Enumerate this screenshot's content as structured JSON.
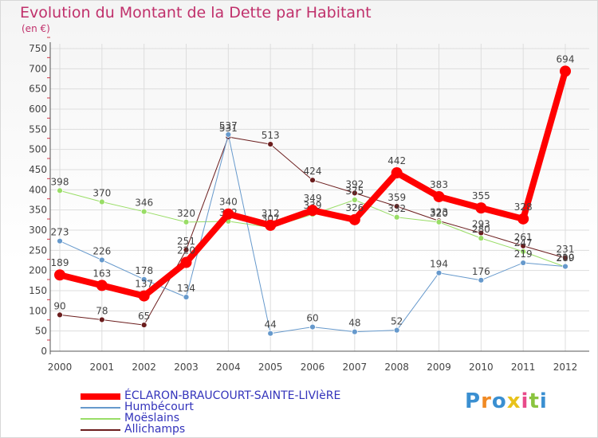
{
  "logo": "Proxiti",
  "colors": {
    "title": "#c0306b",
    "grid": "#dddddd",
    "axis": "#555555",
    "label": "#444444",
    "legend_text": "#3333bb"
  },
  "chart_data": {
    "type": "line",
    "title": "Evolution du Montant de la Dette par Habitant",
    "unit_label": "(en €)",
    "x": [
      "2000",
      "2001",
      "2002",
      "2003",
      "2004",
      "2005",
      "2006",
      "2007",
      "2008",
      "2009",
      "2010",
      "2011",
      "2012"
    ],
    "ylim": [
      0,
      750
    ],
    "yticks": [
      0,
      50,
      100,
      150,
      200,
      250,
      300,
      350,
      400,
      450,
      500,
      550,
      600,
      650,
      700,
      750
    ],
    "grid": true,
    "legend_position": "bottom-left",
    "series": [
      {
        "name": "Allichamps",
        "color": "#6b1d1d",
        "width": 1,
        "marker_radius": 3.5,
        "values": [
          90,
          78,
          65,
          251,
          531,
          513,
          424,
          392,
          359,
          323,
          293,
          261,
          231
        ]
      },
      {
        "name": "Moëslains",
        "color": "#99dd66",
        "width": 1,
        "marker_radius": 3.5,
        "values": [
          398,
          370,
          346,
          320,
          322,
          307,
          339,
          375,
          332,
          320,
          280,
          247,
          209
        ]
      },
      {
        "name": "Humbécourt",
        "color": "#6699cc",
        "width": 1,
        "marker_radius": 3.5,
        "values": [
          273,
          226,
          178,
          134,
          537,
          44,
          60,
          48,
          52,
          194,
          176,
          219,
          210
        ]
      },
      {
        "name": "ÉCLARON-BRAUCOURT-SAINTE-LIVIèRE",
        "color": "#ff0000",
        "width": 8,
        "marker_radius": 7,
        "values": [
          189,
          163,
          137,
          220,
          340,
          312,
          349,
          326,
          442,
          383,
          355,
          328,
          694
        ]
      }
    ],
    "legend": [
      "ÉCLARON-BRAUCOURT-SAINTE-LIVIèRE",
      "Humbécourt",
      "Moëslains",
      "Allichamps"
    ]
  }
}
